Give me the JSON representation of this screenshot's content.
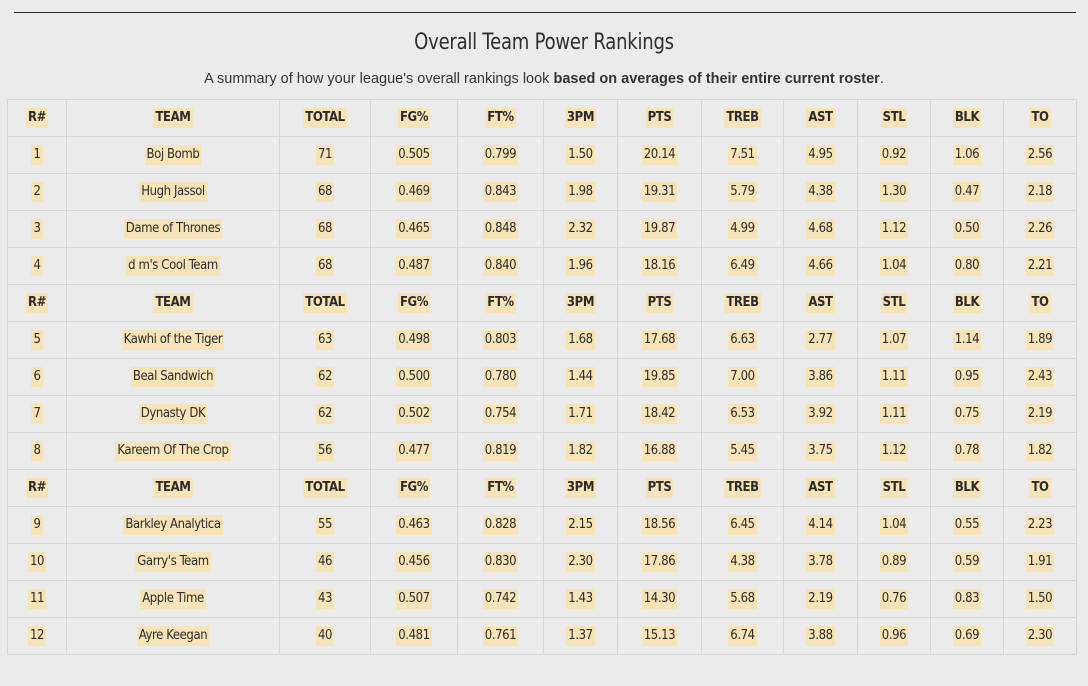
{
  "title": "Overall Team Power Rankings",
  "subtitle_plain": "A summary of how your league's overall rankings look ",
  "subtitle_bold": "based on averages of their entire current roster",
  "subtitle_end": ".",
  "colors": {
    "background": "#ebebeb",
    "highlight": "#f6e4b8",
    "border": "#d6d6d6"
  },
  "headers": [
    "R#",
    "TEAM",
    "TOTAL",
    "FG%",
    "FT%",
    "3PM",
    "PTS",
    "TREB",
    "AST",
    "STL",
    "BLK",
    "TO"
  ],
  "groups": [
    [
      [
        "1",
        "Boj Bomb",
        "71",
        "0.505",
        "0.799",
        "1.50",
        "20.14",
        "7.51",
        "4.95",
        "0.92",
        "1.06",
        "2.56"
      ],
      [
        "2",
        "Hugh Jassol",
        "68",
        "0.469",
        "0.843",
        "1.98",
        "19.31",
        "5.79",
        "4.38",
        "1.30",
        "0.47",
        "2.18"
      ],
      [
        "3",
        "Dame of Thrones",
        "68",
        "0.465",
        "0.848",
        "2.32",
        "19.87",
        "4.99",
        "4.68",
        "1.12",
        "0.50",
        "2.26"
      ],
      [
        "4",
        "d m's Cool Team",
        "68",
        "0.487",
        "0.840",
        "1.96",
        "18.16",
        "6.49",
        "4.66",
        "1.04",
        "0.80",
        "2.21"
      ]
    ],
    [
      [
        "5",
        "Kawhi of the Tiger",
        "63",
        "0.498",
        "0.803",
        "1.68",
        "17.68",
        "6.63",
        "2.77",
        "1.07",
        "1.14",
        "1.89"
      ],
      [
        "6",
        "Beal Sandwich",
        "62",
        "0.500",
        "0.780",
        "1.44",
        "19.85",
        "7.00",
        "3.86",
        "1.11",
        "0.95",
        "2.43"
      ],
      [
        "7",
        "Dynasty DK",
        "62",
        "0.502",
        "0.754",
        "1.71",
        "18.42",
        "6.53",
        "3.92",
        "1.11",
        "0.75",
        "2.19"
      ],
      [
        "8",
        "Kareem Of The Crop",
        "56",
        "0.477",
        "0.819",
        "1.82",
        "16.88",
        "5.45",
        "3.75",
        "1.12",
        "0.78",
        "1.82"
      ]
    ],
    [
      [
        "9",
        "Barkley Analytica",
        "55",
        "0.463",
        "0.828",
        "2.15",
        "18.56",
        "6.45",
        "4.14",
        "1.04",
        "0.55",
        "2.23"
      ],
      [
        "10",
        "Garry's Team",
        "46",
        "0.456",
        "0.830",
        "2.30",
        "17.86",
        "4.38",
        "3.78",
        "0.89",
        "0.59",
        "1.91"
      ],
      [
        "11",
        "Apple Time",
        "43",
        "0.507",
        "0.742",
        "1.43",
        "14.30",
        "5.68",
        "2.19",
        "0.76",
        "0.83",
        "1.50"
      ],
      [
        "12",
        "Ayre Keegan",
        "40",
        "0.481",
        "0.761",
        "1.37",
        "15.13",
        "6.74",
        "3.88",
        "0.96",
        "0.69",
        "2.30"
      ]
    ]
  ]
}
